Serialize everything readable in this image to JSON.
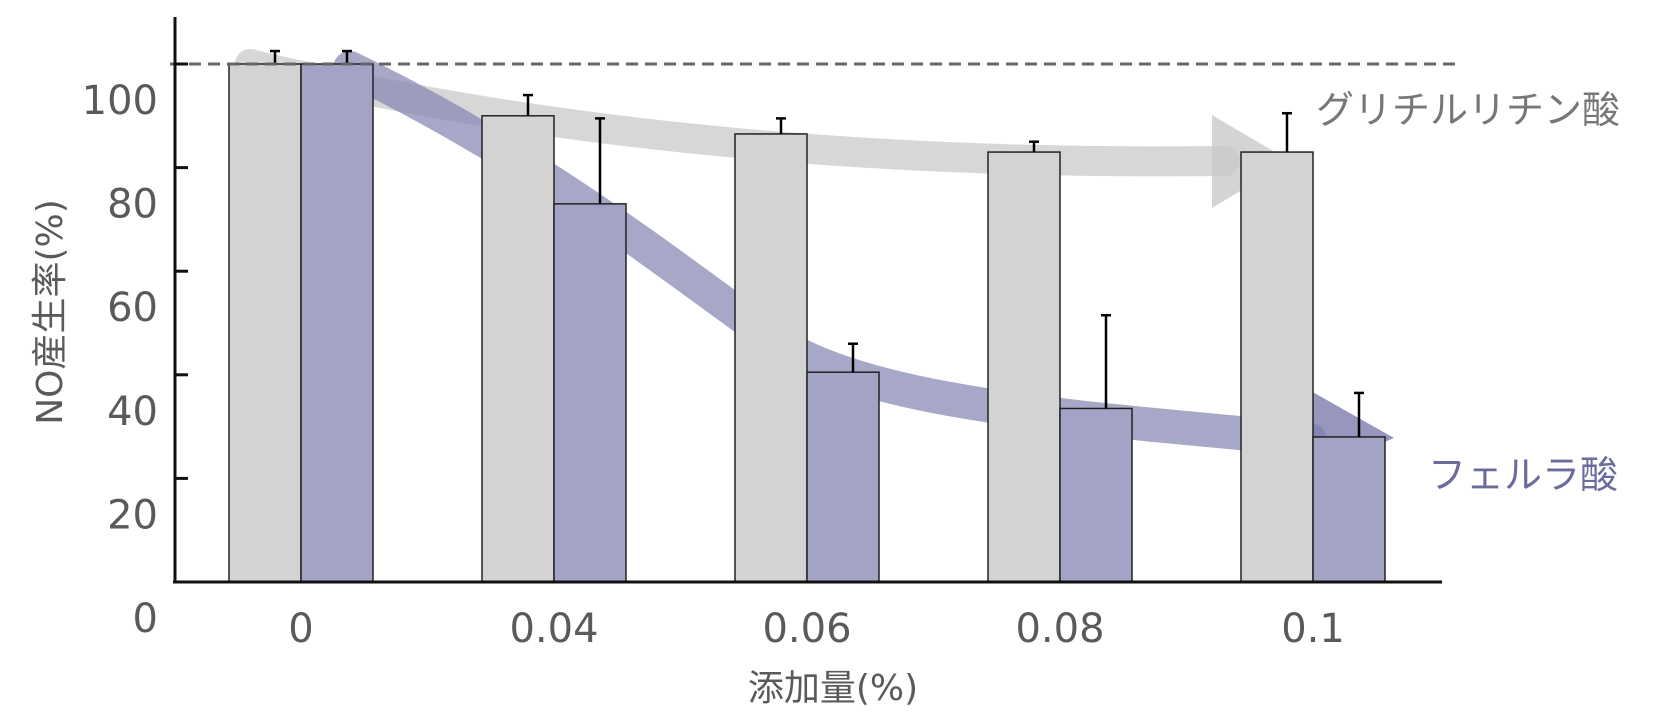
{
  "chart_data": {
    "type": "bar",
    "title": "",
    "xlabel": "添加量(%)",
    "ylabel": "NO産生率(%)",
    "ylim": [
      0,
      110
    ],
    "yticks": [
      0,
      20,
      40,
      60,
      80,
      100
    ],
    "categories": [
      "0",
      "0.04",
      "0.06",
      "0.08",
      "0.1"
    ],
    "reference_line": {
      "value": 100,
      "style": "dashed",
      "color": "#666666"
    },
    "series": [
      {
        "name": "グリチルリチン酸",
        "color": "#d3d3d3",
        "label_color": "#777777",
        "values": [
          100,
          90,
          86.5,
          83,
          83
        ],
        "errors": [
          2.5,
          4,
          3,
          2,
          7.5
        ],
        "trend": "slight decrease"
      },
      {
        "name": "フェルラ酸",
        "color": "#a3a3c6",
        "label_color": "#6b6b9c",
        "values": [
          100,
          73,
          40.5,
          33.5,
          28
        ],
        "errors": [
          2.5,
          16.5,
          5.5,
          18,
          8.5
        ],
        "trend": "strong decrease"
      }
    ],
    "grid": false,
    "legend": "inline labels right of arrows"
  }
}
